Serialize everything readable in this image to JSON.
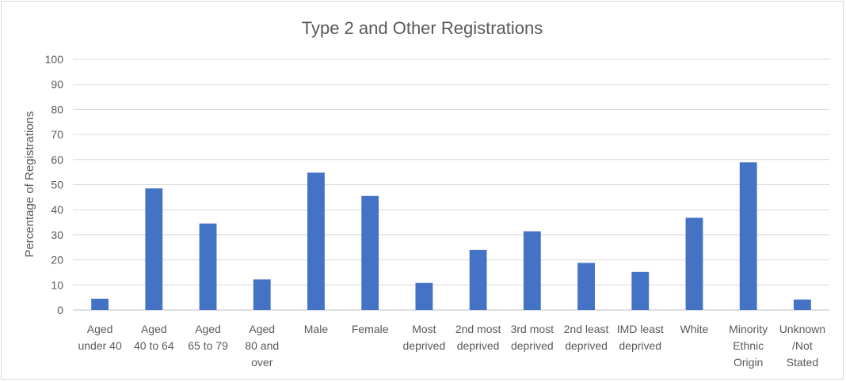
{
  "chart_data": {
    "type": "bar",
    "title": "Type 2 and Other Registrations",
    "ylabel": "Percentage of Registrations",
    "xlabel": "",
    "ylim": [
      0,
      100
    ],
    "yticks": [
      0,
      10,
      20,
      30,
      40,
      50,
      60,
      70,
      80,
      90,
      100
    ],
    "grid": true,
    "bar_color": "#4472C4",
    "categories": [
      [
        "Aged",
        "under 40"
      ],
      [
        "Aged",
        "40 to 64"
      ],
      [
        "Aged",
        "65 to 79"
      ],
      [
        "Aged",
        "80 and",
        "over"
      ],
      [
        "Male"
      ],
      [
        "Female"
      ],
      [
        "Most",
        "deprived"
      ],
      [
        "2nd most",
        "deprived"
      ],
      [
        "3rd most",
        "deprived"
      ],
      [
        "2nd least",
        "deprived"
      ],
      [
        "IMD least",
        "deprived"
      ],
      [
        "White"
      ],
      [
        "Minority",
        "Ethnic",
        "Origin"
      ],
      [
        "Unknown",
        "/Not",
        "Stated"
      ]
    ],
    "values": [
      4.5,
      48.5,
      34.5,
      12.2,
      54.8,
      45.5,
      10.8,
      24,
      31.4,
      18.8,
      15.2,
      36.8,
      58.9,
      4.2
    ]
  }
}
